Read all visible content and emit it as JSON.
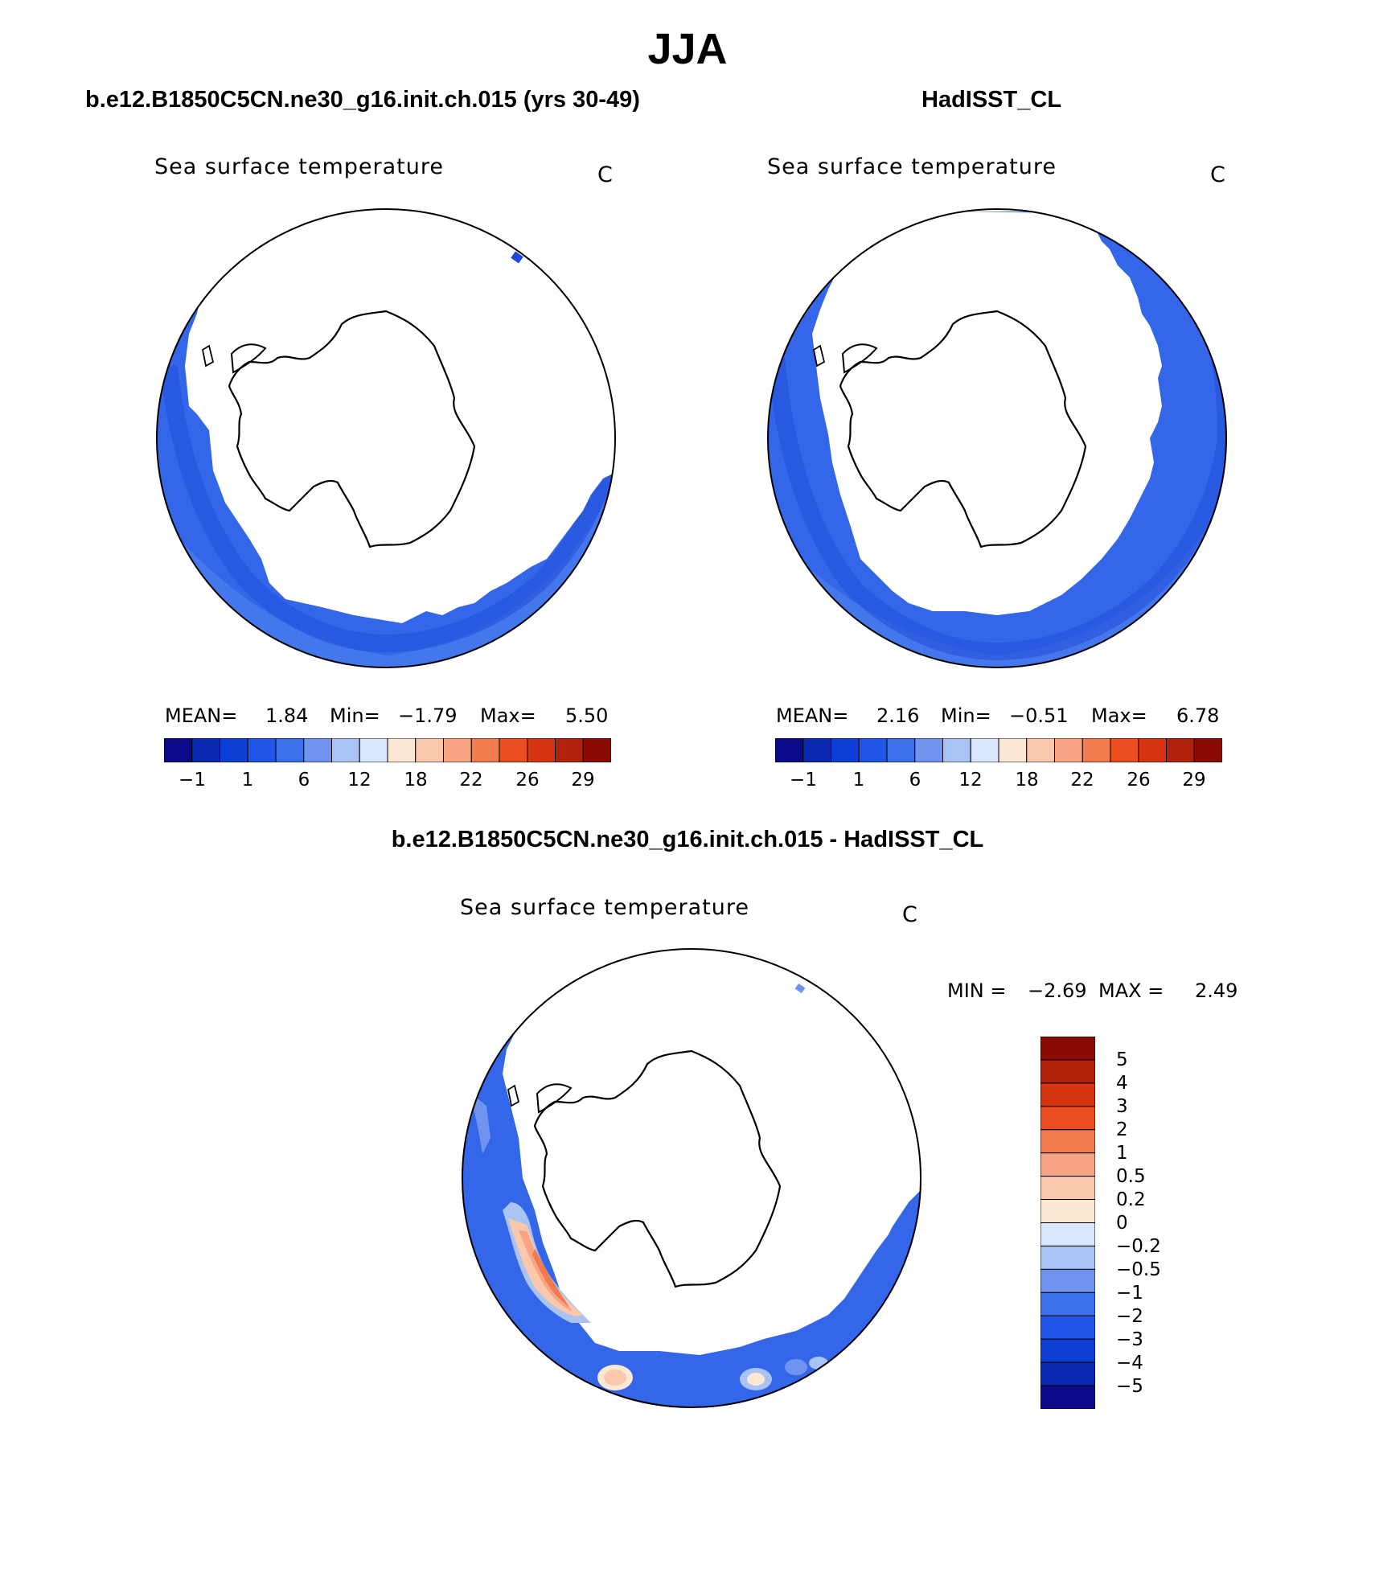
{
  "title": "JJA",
  "panels": [
    {
      "case_title": "b.e12.B1850C5CN.ne30_g16.init.ch.015 (yrs 30-49)",
      "var_label": "Sea surface temperature",
      "unit": "C",
      "stats": {
        "mean_label": "MEAN=",
        "mean": "1.84",
        "min_label": "Min=",
        "min": "−1.79",
        "max_label": "Max=",
        "max": "5.50"
      },
      "colorbar_ticks": [
        "−1",
        "1",
        "6",
        "12",
        "18",
        "22",
        "26",
        "29"
      ]
    },
    {
      "case_title": "HadISST_CL",
      "var_label": "Sea surface temperature",
      "unit": "C",
      "stats": {
        "mean_label": "MEAN=",
        "mean": "2.16",
        "min_label": "Min=",
        "min": "−0.51",
        "max_label": "Max=",
        "max": "6.78"
      },
      "colorbar_ticks": [
        "−1",
        "1",
        "6",
        "12",
        "18",
        "22",
        "26",
        "29"
      ]
    }
  ],
  "diff": {
    "title": "b.e12.B1850C5CN.ne30_g16.init.ch.015 - HadISST_CL",
    "var_label": "Sea surface temperature",
    "unit": "C",
    "stats": {
      "min_label": "MIN =",
      "min": "−2.69",
      "max_label": "MAX =",
      "max": "2.49"
    },
    "colorbar_ticks": [
      "5",
      "4",
      "3",
      "2",
      "1",
      "0.5",
      "0.2",
      "0",
      "−0.2",
      "−0.5",
      "−1",
      "−2",
      "−3",
      "−4",
      "−5"
    ]
  },
  "colors": {
    "sst_scale": [
      "#0a0a8a",
      "#0b28b0",
      "#0d3fd6",
      "#1f56e8",
      "#3c6fea",
      "#6f93ee",
      "#a9c3f4",
      "#d8e7fb",
      "#fde8d4",
      "#fbc8ac",
      "#f6a483",
      "#f17a4f",
      "#eb4d1f",
      "#d63312",
      "#b0220c",
      "#8a0b06"
    ],
    "diff_scale": [
      "#8a0b06",
      "#b0220c",
      "#d63312",
      "#eb4d1f",
      "#f17a4f",
      "#f6a483",
      "#fbc8ac",
      "#fde8d4",
      "#d8e7fb",
      "#a9c3f4",
      "#6f93ee",
      "#3c6fea",
      "#1f56e8",
      "#0d3fd6",
      "#0b28b0",
      "#0a0a8a"
    ],
    "ocean_dark": "#1f48d8",
    "ocean_mid": "#2c5fe6",
    "ocean_light": "#4a7cec"
  }
}
